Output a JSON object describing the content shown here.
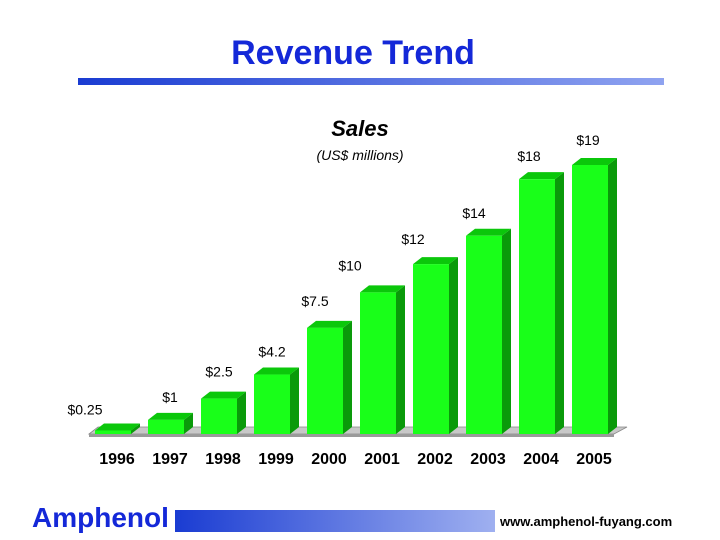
{
  "slide": {
    "title": "Revenue Trend",
    "brand": "Amphenol",
    "website": "www.amphenol-fuyang.com"
  },
  "colors": {
    "title": "#1428d8",
    "bar_front": "#19ff19",
    "bar_side": "#0a9a0a",
    "bar_top": "#0bc70b",
    "floor": "#c8c8c8"
  },
  "chart_data": {
    "type": "bar",
    "title": "Sales",
    "subtitle": "(US$ millions)",
    "categories": [
      "1996",
      "1997",
      "1998",
      "1999",
      "2000",
      "2001",
      "2002",
      "2003",
      "2004",
      "2005"
    ],
    "values": [
      0.25,
      1,
      2.5,
      4.2,
      7.5,
      10,
      12,
      14,
      18,
      19
    ],
    "data_labels": [
      "$0.25",
      "$1",
      "$2.5",
      "$4.2",
      "$7.5",
      "$10",
      "$12",
      "$14",
      "$18",
      "$19"
    ],
    "ylim": [
      0,
      19
    ],
    "grid": false,
    "legend": "none"
  }
}
